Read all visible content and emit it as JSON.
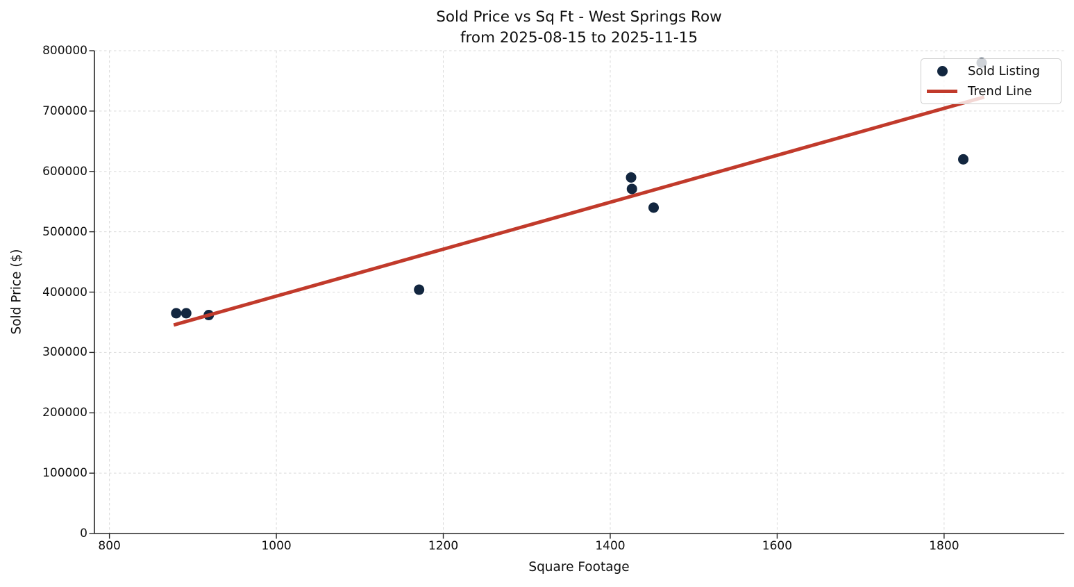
{
  "title": {
    "line1": "Sold Price vs Sq Ft - West Springs Row",
    "line2": "from 2025-08-15 to 2025-11-15"
  },
  "axes": {
    "xlabel": "Square Footage",
    "ylabel": "Sold Price ($)"
  },
  "legend": {
    "items": [
      {
        "label": "Sold Listing",
        "marker": "dot",
        "color": "#12263f"
      },
      {
        "label": "Trend Line",
        "marker": "line",
        "color": "#c13a2b"
      }
    ]
  },
  "chart_data": {
    "type": "scatter",
    "title": "Sold Price vs Sq Ft - West Springs Row\nfrom 2025-08-15 to 2025-11-15",
    "xlabel": "Square Footage",
    "ylabel": "Sold Price ($)",
    "xlim": [
      782,
      1944
    ],
    "ylim": [
      0,
      800000
    ],
    "xticks": [
      800,
      1000,
      1200,
      1400,
      1600,
      1800
    ],
    "yticks": [
      0,
      100000,
      200000,
      300000,
      400000,
      500000,
      600000,
      700000,
      800000
    ],
    "grid": true,
    "grid_style": "dashed",
    "legend_position": "upper right",
    "series": [
      {
        "name": "Sold Listing",
        "type": "scatter",
        "color": "#12263f",
        "marker_size": 15,
        "points": [
          {
            "sqft": 880,
            "price": 365000
          },
          {
            "sqft": 892,
            "price": 365000
          },
          {
            "sqft": 919,
            "price": 362000
          },
          {
            "sqft": 1171,
            "price": 404000
          },
          {
            "sqft": 1425,
            "price": 590000
          },
          {
            "sqft": 1426,
            "price": 571000
          },
          {
            "sqft": 1452,
            "price": 540000
          },
          {
            "sqft": 1823,
            "price": 620000
          },
          {
            "sqft": 1845,
            "price": 780000
          }
        ]
      },
      {
        "name": "Trend Line",
        "type": "line",
        "color": "#c13a2b",
        "line_width": 5,
        "points": [
          {
            "sqft": 877,
            "price": 345500
          },
          {
            "sqft": 1848,
            "price": 723200
          }
        ]
      }
    ]
  }
}
